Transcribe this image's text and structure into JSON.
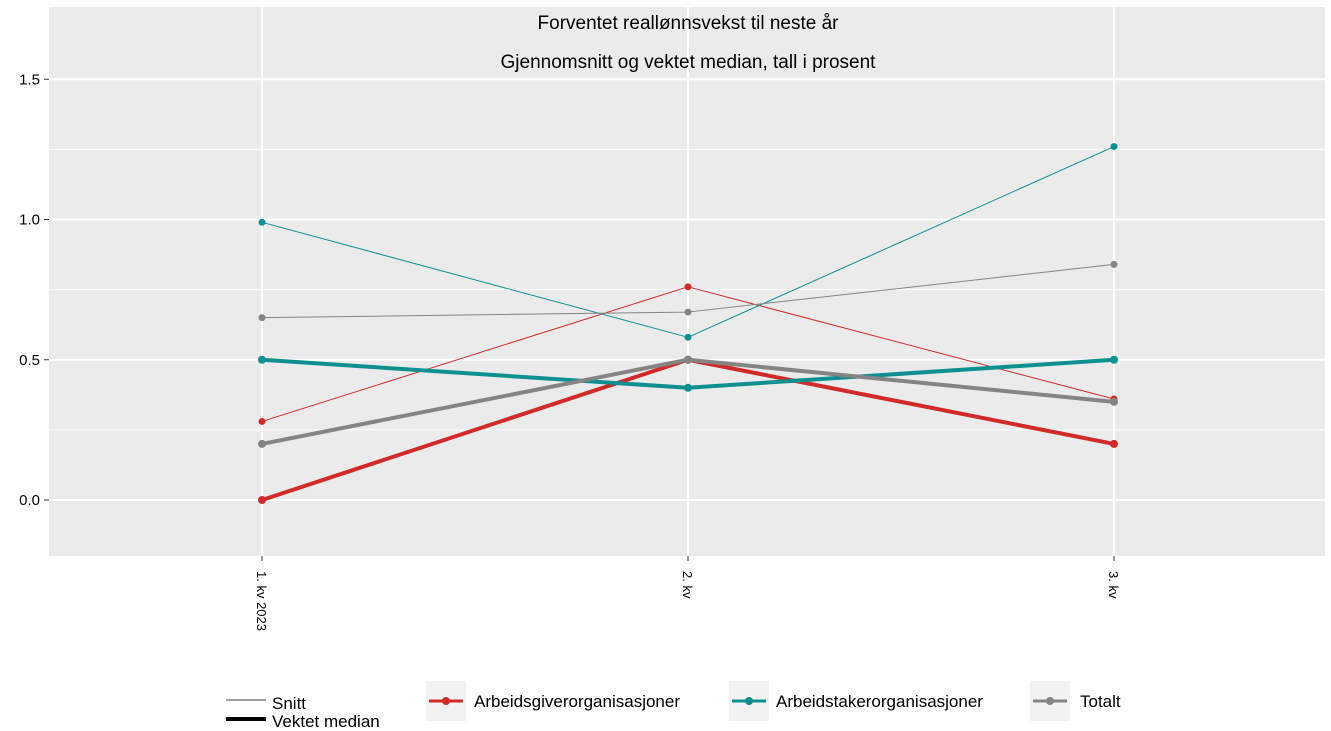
{
  "chart_data": {
    "type": "line",
    "title": "Forventet reallønnsvekst til neste år",
    "subtitle": "Gjennomsnitt og vektet median, tall i prosent",
    "xlabel": "",
    "ylabel": "",
    "categories": [
      "1. kv 2023",
      "2. kv",
      "3. kv"
    ],
    "ylim": [
      -0.2,
      1.75
    ],
    "yticks": [
      0.0,
      0.5,
      1.0,
      1.5
    ],
    "ytick_labels": [
      "0.0",
      "0.5",
      "1.0",
      "1.5"
    ],
    "grid": true,
    "legend_position": "bottom",
    "linetype_legend": [
      {
        "label": "Snitt",
        "style": "thin"
      },
      {
        "label": "Vektet median",
        "style": "thick"
      }
    ],
    "series": [
      {
        "name": "Arbeidsgiverorganisasjoner",
        "measure": "Snitt",
        "color": "#d12a2a",
        "values": [
          0.28,
          0.76,
          0.36
        ]
      },
      {
        "name": "Arbeidstakerorganisasjoner",
        "measure": "Snitt",
        "color": "#0e9090",
        "values": [
          0.99,
          0.58,
          1.26
        ]
      },
      {
        "name": "Totalt",
        "measure": "Snitt",
        "color": "#848484",
        "values": [
          0.65,
          0.67,
          0.84
        ]
      },
      {
        "name": "Arbeidsgiverorganisasjoner",
        "measure": "Vektet median",
        "color": "#d12a2a",
        "values": [
          0.0,
          0.5,
          0.2
        ]
      },
      {
        "name": "Arbeidstakerorganisasjoner",
        "measure": "Vektet median",
        "color": "#0e9090",
        "values": [
          0.5,
          0.4,
          0.5
        ]
      },
      {
        "name": "Totalt",
        "measure": "Vektet median",
        "color": "#848484",
        "values": [
          0.2,
          0.5,
          0.35
        ]
      }
    ],
    "color_legend": [
      {
        "label": "Arbeidsgiverorganisasjoner",
        "color": "#d12a2a"
      },
      {
        "label": "Arbeidstakerorganisasjoner",
        "color": "#0e9090"
      },
      {
        "label": "Totalt",
        "color": "#848484"
      }
    ],
    "panel_background": "#ebebeb",
    "grid_color": "#ffffff"
  }
}
